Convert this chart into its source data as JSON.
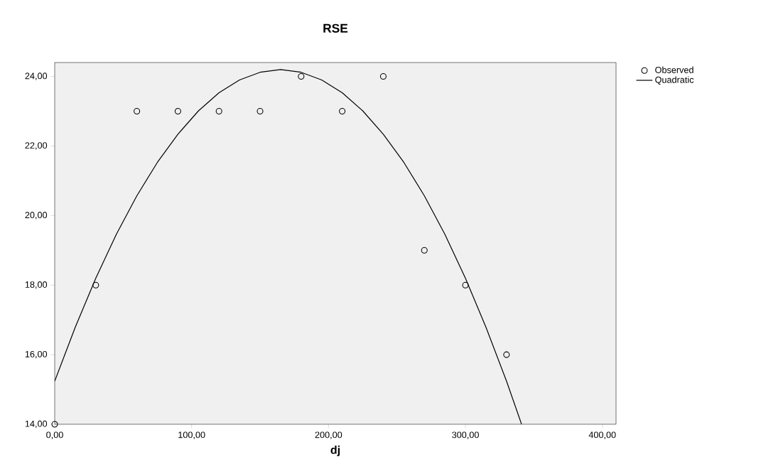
{
  "chart_data": {
    "type": "scatter",
    "title": "RSE",
    "xlabel": "dj",
    "xlim": [
      0,
      410
    ],
    "ylim": [
      14,
      24.4
    ],
    "xticks": [
      {
        "value": 0,
        "label": "0,00"
      },
      {
        "value": 100,
        "label": "100,00"
      },
      {
        "value": 200,
        "label": "200,00"
      },
      {
        "value": 300,
        "label": "300,00"
      },
      {
        "value": 400,
        "label": "400,00"
      }
    ],
    "yticks": [
      {
        "value": 14,
        "label": "14,00"
      },
      {
        "value": 16,
        "label": "16,00"
      },
      {
        "value": 18,
        "label": "18,00"
      },
      {
        "value": 20,
        "label": "20,00"
      },
      {
        "value": 22,
        "label": "22,00"
      },
      {
        "value": 24,
        "label": "24,00"
      }
    ],
    "legend": "top right",
    "series": [
      {
        "name": "Observed",
        "marker": "circle",
        "color": "#000000",
        "x": [
          0,
          30,
          60,
          90,
          120,
          150,
          180,
          210,
          240,
          270,
          300,
          330
        ],
        "values": [
          14,
          18,
          23,
          23,
          23,
          23,
          24,
          23,
          24,
          19,
          18,
          16
        ]
      },
      {
        "name": "Quadratic",
        "type": "line",
        "marker": "none",
        "color": "#000000",
        "x": [
          0,
          15,
          30,
          45,
          60,
          75,
          90,
          105,
          120,
          135,
          150,
          165,
          180,
          195,
          210,
          225,
          240,
          255,
          270,
          285,
          300,
          315,
          330,
          341
        ],
        "values": [
          15.24,
          16.79,
          18.2,
          19.46,
          20.57,
          21.53,
          22.34,
          23.01,
          23.53,
          23.9,
          24.12,
          24.2,
          24.12,
          23.9,
          23.53,
          23.01,
          22.34,
          21.53,
          20.57,
          19.46,
          18.2,
          16.79,
          15.24,
          14.0
        ]
      }
    ]
  }
}
